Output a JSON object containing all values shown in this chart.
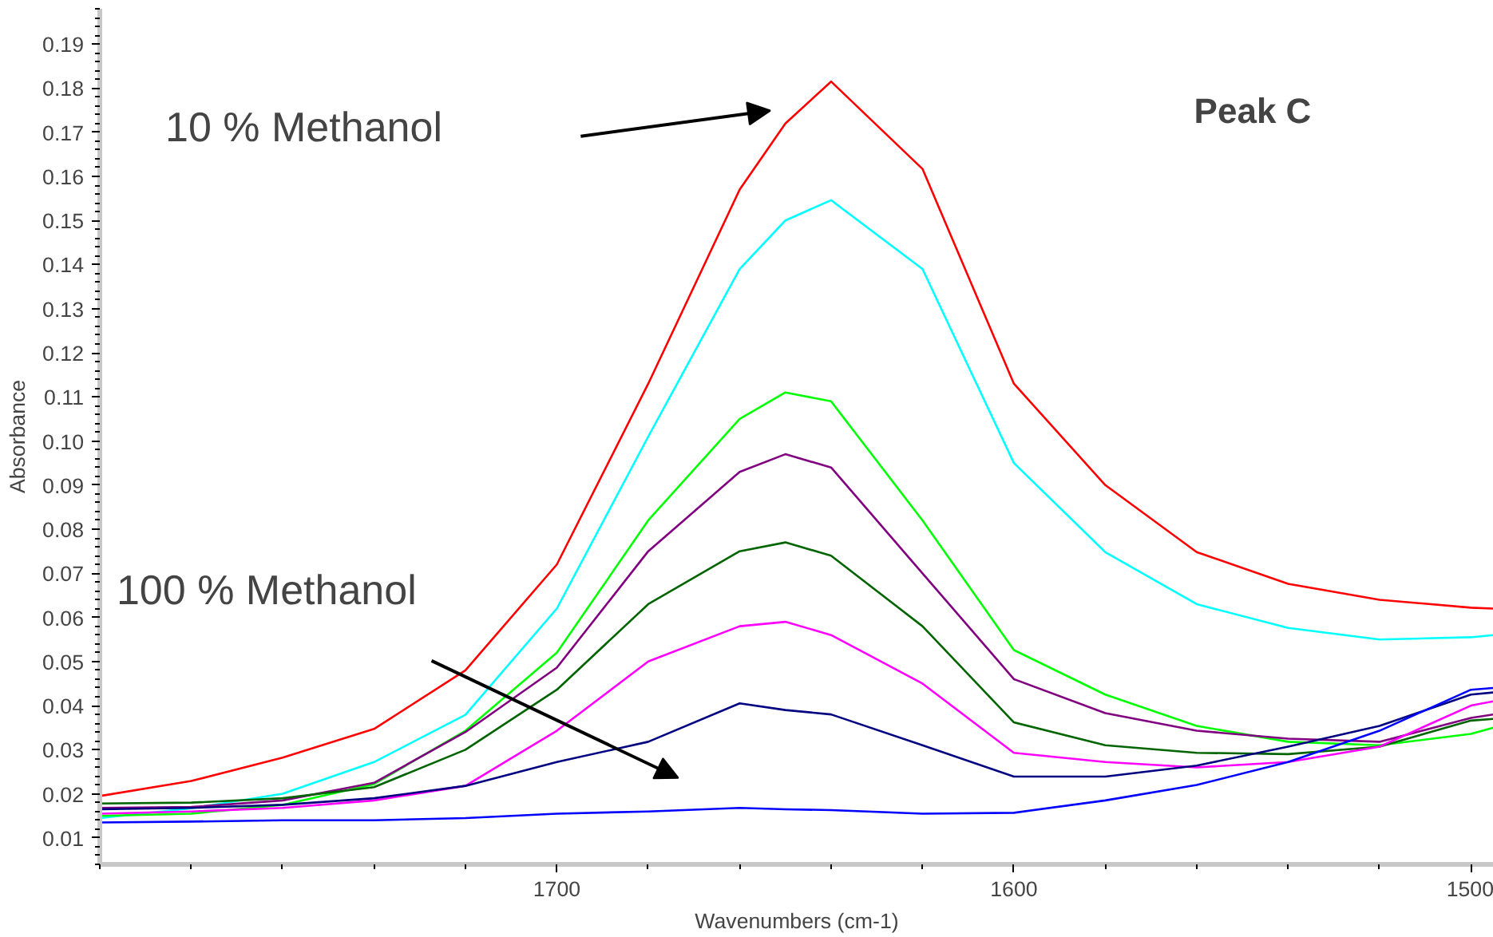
{
  "chart_data": {
    "type": "line",
    "xlabel": "Wavenumbers (cm-1)",
    "ylabel": "Absorbance",
    "annotations": [
      "10 % Methanol",
      "100 % Methanol",
      "Peak C"
    ],
    "x": [
      1800,
      1780,
      1760,
      1740,
      1720,
      1700,
      1680,
      1660,
      1650,
      1640,
      1620,
      1600,
      1580,
      1560,
      1540,
      1520,
      1500,
      1495
    ],
    "series": [
      {
        "color": "#ff0000",
        "values": [
          0.0195,
          0.0229,
          0.0282,
          0.0347,
          0.048,
          0.072,
          0.113,
          0.157,
          0.172,
          0.1815,
          0.1617,
          0.113,
          0.09,
          0.0748,
          0.0676,
          0.064,
          0.0622,
          0.062
        ]
      },
      {
        "color": "#00ffff",
        "values": [
          0.0145,
          0.0167,
          0.02,
          0.0272,
          0.0379,
          0.062,
          0.101,
          0.139,
          0.15,
          0.1546,
          0.139,
          0.095,
          0.0748,
          0.063,
          0.0576,
          0.055,
          0.0555,
          0.056
        ]
      },
      {
        "color": "#00ff00",
        "values": [
          0.015,
          0.0155,
          0.0175,
          0.0222,
          0.0343,
          0.052,
          0.082,
          0.105,
          0.111,
          0.109,
          0.082,
          0.0526,
          0.0425,
          0.0354,
          0.0318,
          0.031,
          0.0336,
          0.035
        ]
      },
      {
        "color": "#800080",
        "values": [
          0.0168,
          0.017,
          0.0185,
          0.0225,
          0.034,
          0.0486,
          0.075,
          0.093,
          0.097,
          0.094,
          0.07,
          0.046,
          0.0383,
          0.0343,
          0.0325,
          0.0318,
          0.0372,
          0.038
        ]
      },
      {
        "color": "#006400",
        "values": [
          0.0178,
          0.018,
          0.019,
          0.0215,
          0.03,
          0.0436,
          0.063,
          0.075,
          0.077,
          0.074,
          0.058,
          0.0362,
          0.031,
          0.0293,
          0.029,
          0.0307,
          0.0366,
          0.037
        ]
      },
      {
        "color": "#ff00ff",
        "values": [
          0.0155,
          0.016,
          0.0168,
          0.0185,
          0.0218,
          0.0343,
          0.05,
          0.058,
          0.059,
          0.056,
          0.045,
          0.0293,
          0.0272,
          0.026,
          0.0272,
          0.0307,
          0.04,
          0.041
        ]
      },
      {
        "color": "#000080",
        "values": [
          0.0165,
          0.0168,
          0.0175,
          0.019,
          0.0218,
          0.0272,
          0.0318,
          0.0405,
          0.039,
          0.038,
          0.031,
          0.0239,
          0.0239,
          0.0264,
          0.0307,
          0.0354,
          0.0425,
          0.043
        ]
      },
      {
        "color": "#0000ff",
        "values": [
          0.0135,
          0.0137,
          0.014,
          0.014,
          0.0145,
          0.0155,
          0.016,
          0.0168,
          0.0165,
          0.0163,
          0.0155,
          0.0157,
          0.0185,
          0.022,
          0.0272,
          0.0343,
          0.0436,
          0.044
        ]
      }
    ],
    "xlim": [
      1800,
      1495
    ],
    "xticks": [
      1700,
      1600,
      1500
    ],
    "ylim": [
      0.004,
      0.198
    ],
    "yticks": [
      0.01,
      0.02,
      0.03,
      0.04,
      0.05,
      0.06,
      0.07,
      0.08,
      0.09,
      {
        "value": 0.1,
        "label": "0.10"
      },
      0.11,
      0.12,
      0.13,
      0.14,
      0.15,
      0.16,
      0.17,
      0.18,
      0.19
    ],
    "grid": false
  }
}
